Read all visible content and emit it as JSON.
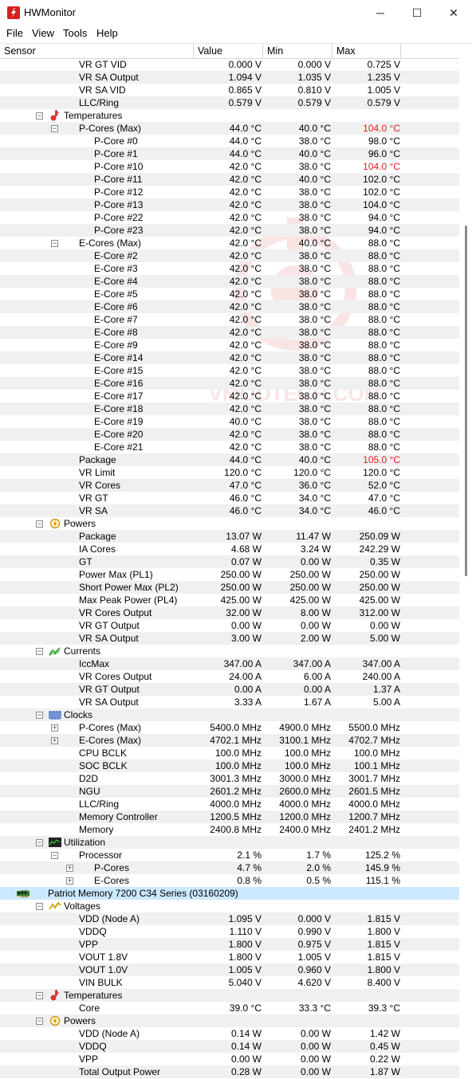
{
  "window": {
    "title": "HWMonitor",
    "minimize": "─",
    "maximize": "☐",
    "close": "✕"
  },
  "menu": [
    "File",
    "View",
    "Tools",
    "Help"
  ],
  "columns": [
    "Sensor",
    "Value",
    "Min",
    "Max"
  ],
  "watermark_text": "VMODTECH.COM",
  "rows": [
    {
      "label": "VR GT VID",
      "level": 3,
      "values": [
        "0.000 V",
        "0.000 V",
        "0.725 V"
      ]
    },
    {
      "label": "VR SA Output",
      "level": 3,
      "values": [
        "1.094 V",
        "1.035 V",
        "1.235 V"
      ]
    },
    {
      "label": "VR SA VID",
      "level": 3,
      "values": [
        "0.865 V",
        "0.810 V",
        "1.005 V"
      ]
    },
    {
      "label": "LLC/Ring",
      "level": 3,
      "values": [
        "0.579 V",
        "0.579 V",
        "0.579 V"
      ]
    },
    {
      "label": "Temperatures",
      "level": 2,
      "toggle": "-",
      "icon": "thermometer-icon"
    },
    {
      "label": "P-Cores (Max)",
      "level": 3,
      "toggle": "-",
      "values": [
        "44.0 °C",
        "40.0 °C",
        "104.0 °C"
      ],
      "red": [
        2
      ]
    },
    {
      "label": "P-Core #0",
      "level": 4,
      "values": [
        "44.0 °C",
        "38.0 °C",
        "98.0 °C"
      ]
    },
    {
      "label": "P-Core #1",
      "level": 4,
      "values": [
        "44.0 °C",
        "40.0 °C",
        "96.0 °C"
      ]
    },
    {
      "label": "P-Core #10",
      "level": 4,
      "values": [
        "42.0 °C",
        "38.0 °C",
        "104.0 °C"
      ],
      "red": [
        2
      ]
    },
    {
      "label": "P-Core #11",
      "level": 4,
      "values": [
        "42.0 °C",
        "40.0 °C",
        "102.0 °C"
      ]
    },
    {
      "label": "P-Core #12",
      "level": 4,
      "values": [
        "42.0 °C",
        "38.0 °C",
        "102.0 °C"
      ]
    },
    {
      "label": "P-Core #13",
      "level": 4,
      "values": [
        "42.0 °C",
        "38.0 °C",
        "104.0 °C"
      ]
    },
    {
      "label": "P-Core #22",
      "level": 4,
      "values": [
        "42.0 °C",
        "38.0 °C",
        "94.0 °C"
      ]
    },
    {
      "label": "P-Core #23",
      "level": 4,
      "values": [
        "42.0 °C",
        "38.0 °C",
        "94.0 °C"
      ]
    },
    {
      "label": "E-Cores (Max)",
      "level": 3,
      "toggle": "-",
      "values": [
        "42.0 °C",
        "40.0 °C",
        "88.0 °C"
      ]
    },
    {
      "label": "E-Core #2",
      "level": 4,
      "values": [
        "42.0 °C",
        "38.0 °C",
        "88.0 °C"
      ]
    },
    {
      "label": "E-Core #3",
      "level": 4,
      "values": [
        "42.0 °C",
        "38.0 °C",
        "88.0 °C"
      ]
    },
    {
      "label": "E-Core #4",
      "level": 4,
      "values": [
        "42.0 °C",
        "38.0 °C",
        "88.0 °C"
      ]
    },
    {
      "label": "E-Core #5",
      "level": 4,
      "values": [
        "42.0 °C",
        "38.0 °C",
        "88.0 °C"
      ]
    },
    {
      "label": "E-Core #6",
      "level": 4,
      "values": [
        "42.0 °C",
        "38.0 °C",
        "88.0 °C"
      ]
    },
    {
      "label": "E-Core #7",
      "level": 4,
      "values": [
        "42.0 °C",
        "38.0 °C",
        "88.0 °C"
      ]
    },
    {
      "label": "E-Core #8",
      "level": 4,
      "values": [
        "42.0 °C",
        "38.0 °C",
        "88.0 °C"
      ]
    },
    {
      "label": "E-Core #9",
      "level": 4,
      "values": [
        "42.0 °C",
        "38.0 °C",
        "88.0 °C"
      ]
    },
    {
      "label": "E-Core #14",
      "level": 4,
      "values": [
        "42.0 °C",
        "38.0 °C",
        "88.0 °C"
      ]
    },
    {
      "label": "E-Core #15",
      "level": 4,
      "values": [
        "42.0 °C",
        "38.0 °C",
        "88.0 °C"
      ]
    },
    {
      "label": "E-Core #16",
      "level": 4,
      "values": [
        "42.0 °C",
        "38.0 °C",
        "88.0 °C"
      ]
    },
    {
      "label": "E-Core #17",
      "level": 4,
      "values": [
        "42.0 °C",
        "38.0 °C",
        "88.0 °C"
      ]
    },
    {
      "label": "E-Core #18",
      "level": 4,
      "values": [
        "42.0 °C",
        "38.0 °C",
        "88.0 °C"
      ]
    },
    {
      "label": "E-Core #19",
      "level": 4,
      "values": [
        "40.0 °C",
        "38.0 °C",
        "88.0 °C"
      ]
    },
    {
      "label": "E-Core #20",
      "level": 4,
      "values": [
        "42.0 °C",
        "38.0 °C",
        "88.0 °C"
      ]
    },
    {
      "label": "E-Core #21",
      "level": 4,
      "values": [
        "42.0 °C",
        "38.0 °C",
        "88.0 °C"
      ]
    },
    {
      "label": "Package",
      "level": 3,
      "values": [
        "44.0 °C",
        "40.0 °C",
        "105.0 °C"
      ],
      "red": [
        2
      ]
    },
    {
      "label": "VR Limit",
      "level": 3,
      "values": [
        "120.0 °C",
        "120.0 °C",
        "120.0 °C"
      ]
    },
    {
      "label": "VR Cores",
      "level": 3,
      "values": [
        "47.0 °C",
        "36.0 °C",
        "52.0 °C"
      ]
    },
    {
      "label": "VR GT",
      "level": 3,
      "values": [
        "46.0 °C",
        "34.0 °C",
        "47.0 °C"
      ]
    },
    {
      "label": "VR SA",
      "level": 3,
      "values": [
        "46.0 °C",
        "34.0 °C",
        "46.0 °C"
      ]
    },
    {
      "label": "Powers",
      "level": 2,
      "toggle": "-",
      "icon": "power-icon"
    },
    {
      "label": "Package",
      "level": 3,
      "values": [
        "13.07 W",
        "11.47 W",
        "250.09 W"
      ]
    },
    {
      "label": "IA Cores",
      "level": 3,
      "values": [
        "4.68 W",
        "3.24 W",
        "242.29 W"
      ]
    },
    {
      "label": "GT",
      "level": 3,
      "values": [
        "0.07 W",
        "0.00 W",
        "0.35 W"
      ]
    },
    {
      "label": "Power Max (PL1)",
      "level": 3,
      "values": [
        "250.00 W",
        "250.00 W",
        "250.00 W"
      ]
    },
    {
      "label": "Short Power Max (PL2)",
      "level": 3,
      "values": [
        "250.00 W",
        "250.00 W",
        "250.00 W"
      ]
    },
    {
      "label": "Max Peak Power (PL4)",
      "level": 3,
      "values": [
        "425.00 W",
        "425.00 W",
        "425.00 W"
      ]
    },
    {
      "label": "VR Cores Output",
      "level": 3,
      "values": [
        "32.00 W",
        "8.00 W",
        "312.00 W"
      ]
    },
    {
      "label": "VR GT Output",
      "level": 3,
      "values": [
        "0.00 W",
        "0.00 W",
        "0.00 W"
      ]
    },
    {
      "label": "VR SA Output",
      "level": 3,
      "values": [
        "3.00 W",
        "2.00 W",
        "5.00 W"
      ]
    },
    {
      "label": "Currents",
      "level": 2,
      "toggle": "-",
      "icon": "current-icon"
    },
    {
      "label": "IccMax",
      "level": 3,
      "values": [
        "347.00 A",
        "347.00 A",
        "347.00 A"
      ]
    },
    {
      "label": "VR Cores Output",
      "level": 3,
      "values": [
        "24.00 A",
        "6.00 A",
        "240.00 A"
      ]
    },
    {
      "label": "VR GT Output",
      "level": 3,
      "values": [
        "0.00 A",
        "0.00 A",
        "1.37 A"
      ]
    },
    {
      "label": "VR SA Output",
      "level": 3,
      "values": [
        "3.33 A",
        "1.67 A",
        "5.00 A"
      ]
    },
    {
      "label": "Clocks",
      "level": 2,
      "toggle": "-",
      "icon": "clock-wave-icon"
    },
    {
      "label": "P-Cores (Max)",
      "level": 3,
      "toggle": "+",
      "values": [
        "5400.0 MHz",
        "4900.0 MHz",
        "5500.0 MHz"
      ]
    },
    {
      "label": "E-Cores (Max)",
      "level": 3,
      "toggle": "+",
      "values": [
        "4702.1 MHz",
        "3100.1 MHz",
        "4702.7 MHz"
      ]
    },
    {
      "label": "CPU BCLK",
      "level": 3,
      "values": [
        "100.0 MHz",
        "100.0 MHz",
        "100.0 MHz"
      ]
    },
    {
      "label": "SOC BCLK",
      "level": 3,
      "values": [
        "100.0 MHz",
        "100.0 MHz",
        "100.1 MHz"
      ]
    },
    {
      "label": "D2D",
      "level": 3,
      "values": [
        "3001.3 MHz",
        "3000.0 MHz",
        "3001.7 MHz"
      ]
    },
    {
      "label": "NGU",
      "level": 3,
      "values": [
        "2601.2 MHz",
        "2600.0 MHz",
        "2601.5 MHz"
      ]
    },
    {
      "label": "LLC/Ring",
      "level": 3,
      "values": [
        "4000.0 MHz",
        "4000.0 MHz",
        "4000.0 MHz"
      ]
    },
    {
      "label": "Memory Controller",
      "level": 3,
      "values": [
        "1200.5 MHz",
        "1200.0 MHz",
        "1200.7 MHz"
      ]
    },
    {
      "label": "Memory",
      "level": 3,
      "values": [
        "2400.8 MHz",
        "2400.0 MHz",
        "2401.2 MHz"
      ]
    },
    {
      "label": "Utilization",
      "level": 2,
      "toggle": "-",
      "icon": "utilization-icon"
    },
    {
      "label": "Processor",
      "level": 3,
      "toggle": "-",
      "values": [
        "2.1 %",
        "1.7 %",
        "125.2 %"
      ]
    },
    {
      "label": "P-Cores",
      "level": 4,
      "toggle": "+",
      "values": [
        "4.7 %",
        "2.0 %",
        "145.9 %"
      ]
    },
    {
      "label": "E-Cores",
      "level": 4,
      "toggle": "+",
      "values": [
        "0.8 %",
        "0.5 %",
        "115.1 %"
      ]
    },
    {
      "label": "Patriot Memory 7200 C34 Series (03160209)",
      "level": 1,
      "toggle": "-",
      "icon": "memory-module-icon",
      "selected": true
    },
    {
      "label": "Voltages",
      "level": 2,
      "toggle": "-",
      "icon": "voltage-icon"
    },
    {
      "label": "VDD (Node A)",
      "level": 3,
      "values": [
        "1.095 V",
        "0.000 V",
        "1.815 V"
      ]
    },
    {
      "label": "VDDQ",
      "level": 3,
      "values": [
        "1.110 V",
        "0.990 V",
        "1.800 V"
      ]
    },
    {
      "label": "VPP",
      "level": 3,
      "values": [
        "1.800 V",
        "0.975 V",
        "1.815 V"
      ]
    },
    {
      "label": "VOUT 1.8V",
      "level": 3,
      "values": [
        "1.800 V",
        "1.005 V",
        "1.815 V"
      ]
    },
    {
      "label": "VOUT 1.0V",
      "level": 3,
      "values": [
        "1.005 V",
        "0.960 V",
        "1.800 V"
      ]
    },
    {
      "label": "VIN BULK",
      "level": 3,
      "values": [
        "5.040 V",
        "4.620 V",
        "8.400 V"
      ]
    },
    {
      "label": "Temperatures",
      "level": 2,
      "toggle": "-",
      "icon": "thermometer-icon"
    },
    {
      "label": "Core",
      "level": 3,
      "values": [
        "39.0 °C",
        "33.3 °C",
        "39.3 °C"
      ]
    },
    {
      "label": "Powers",
      "level": 2,
      "toggle": "-",
      "icon": "power-icon"
    },
    {
      "label": "VDD (Node A)",
      "level": 3,
      "values": [
        "0.14 W",
        "0.00 W",
        "1.42 W"
      ]
    },
    {
      "label": "VDDQ",
      "level": 3,
      "values": [
        "0.14 W",
        "0.00 W",
        "0.45 W"
      ]
    },
    {
      "label": "VPP",
      "level": 3,
      "values": [
        "0.00 W",
        "0.00 W",
        "0.22 W"
      ]
    },
    {
      "label": "Total Output Power",
      "level": 3,
      "values": [
        "0.28 W",
        "0.00 W",
        "1.87 W"
      ]
    }
  ]
}
